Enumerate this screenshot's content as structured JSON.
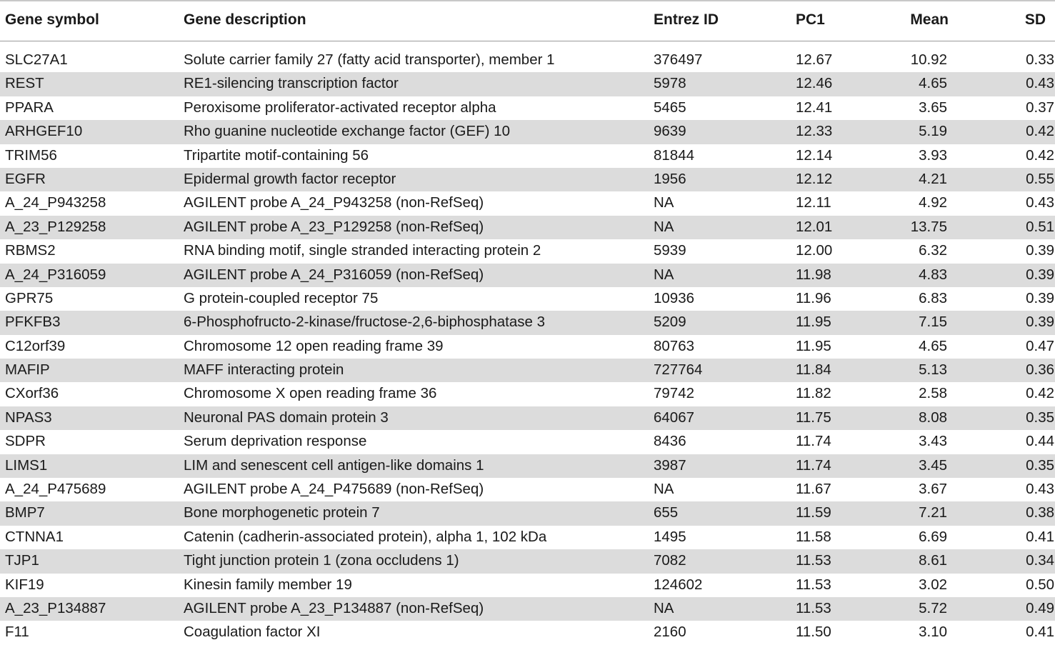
{
  "table": {
    "headers": {
      "gene_symbol": "Gene symbol",
      "gene_description": "Gene description",
      "entrez_id": "Entrez ID",
      "pc1": "PC1",
      "mean": "Mean",
      "sd": "SD"
    },
    "rows": [
      {
        "symbol": "SLC27A1",
        "description": "Solute carrier family 27 (fatty acid transporter), member 1",
        "entrez": "376497",
        "pc1": "12.67",
        "mean": "10.92",
        "sd": "0.33"
      },
      {
        "symbol": "REST",
        "description": "RE1-silencing transcription factor",
        "entrez": "5978",
        "pc1": "12.46",
        "mean": "4.65",
        "sd": "0.43"
      },
      {
        "symbol": "PPARA",
        "description": "Peroxisome proliferator-activated receptor alpha",
        "entrez": "5465",
        "pc1": "12.41",
        "mean": "3.65",
        "sd": "0.37"
      },
      {
        "symbol": "ARHGEF10",
        "description": "Rho guanine nucleotide exchange factor (GEF) 10",
        "entrez": "9639",
        "pc1": "12.33",
        "mean": "5.19",
        "sd": "0.42"
      },
      {
        "symbol": "TRIM56",
        "description": "Tripartite motif-containing 56",
        "entrez": "81844",
        "pc1": "12.14",
        "mean": "3.93",
        "sd": "0.42"
      },
      {
        "symbol": "EGFR",
        "description": "Epidermal growth factor receptor",
        "entrez": "1956",
        "pc1": "12.12",
        "mean": "4.21",
        "sd": "0.55"
      },
      {
        "symbol": "A_24_P943258",
        "description": "AGILENT probe A_24_P943258 (non-RefSeq)",
        "entrez": "NA",
        "pc1": "12.11",
        "mean": "4.92",
        "sd": "0.43"
      },
      {
        "symbol": "A_23_P129258",
        "description": "AGILENT probe A_23_P129258 (non-RefSeq)",
        "entrez": "NA",
        "pc1": "12.01",
        "mean": "13.75",
        "sd": "0.51"
      },
      {
        "symbol": "RBMS2",
        "description": "RNA binding motif, single stranded interacting protein 2",
        "entrez": "5939",
        "pc1": "12.00",
        "mean": "6.32",
        "sd": "0.39"
      },
      {
        "symbol": "A_24_P316059",
        "description": "AGILENT probe A_24_P316059 (non-RefSeq)",
        "entrez": "NA",
        "pc1": "11.98",
        "mean": "4.83",
        "sd": "0.39"
      },
      {
        "symbol": "GPR75",
        "description": "G protein-coupled receptor 75",
        "entrez": "10936",
        "pc1": "11.96",
        "mean": "6.83",
        "sd": "0.39"
      },
      {
        "symbol": "PFKFB3",
        "description": "6-Phosphofructo-2-kinase/fructose-2,6-biphosphatase 3",
        "entrez": "5209",
        "pc1": "11.95",
        "mean": "7.15",
        "sd": "0.39"
      },
      {
        "symbol": "C12orf39",
        "description": "Chromosome 12 open reading frame 39",
        "entrez": "80763",
        "pc1": "11.95",
        "mean": "4.65",
        "sd": "0.47"
      },
      {
        "symbol": "MAFIP",
        "description": "MAFF interacting protein",
        "entrez": "727764",
        "pc1": "11.84",
        "mean": "5.13",
        "sd": "0.36"
      },
      {
        "symbol": "CXorf36",
        "description": "Chromosome X open reading frame 36",
        "entrez": "79742",
        "pc1": "11.82",
        "mean": "2.58",
        "sd": "0.42"
      },
      {
        "symbol": "NPAS3",
        "description": "Neuronal PAS domain protein 3",
        "entrez": "64067",
        "pc1": "11.75",
        "mean": "8.08",
        "sd": "0.35"
      },
      {
        "symbol": "SDPR",
        "description": "Serum deprivation response",
        "entrez": "8436",
        "pc1": "11.74",
        "mean": "3.43",
        "sd": "0.44"
      },
      {
        "symbol": "LIMS1",
        "description": "LIM and senescent cell antigen-like domains 1",
        "entrez": "3987",
        "pc1": "11.74",
        "mean": "3.45",
        "sd": "0.35"
      },
      {
        "symbol": "A_24_P475689",
        "description": "AGILENT probe A_24_P475689 (non-RefSeq)",
        "entrez": "NA",
        "pc1": "11.67",
        "mean": "3.67",
        "sd": "0.43"
      },
      {
        "symbol": "BMP7",
        "description": "Bone morphogenetic protein 7",
        "entrez": "655",
        "pc1": "11.59",
        "mean": "7.21",
        "sd": "0.38"
      },
      {
        "symbol": "CTNNA1",
        "description": "Catenin (cadherin-associated protein), alpha 1, 102 kDa",
        "entrez": "1495",
        "pc1": "11.58",
        "mean": "6.69",
        "sd": "0.41"
      },
      {
        "symbol": "TJP1",
        "description": "Tight junction protein 1 (zona occludens 1)",
        "entrez": "7082",
        "pc1": "11.53",
        "mean": "8.61",
        "sd": "0.34"
      },
      {
        "symbol": "KIF19",
        "description": "Kinesin family member 19",
        "entrez": "124602",
        "pc1": "11.53",
        "mean": "3.02",
        "sd": "0.50"
      },
      {
        "symbol": "A_23_P134887",
        "description": "AGILENT probe A_23_P134887 (non-RefSeq)",
        "entrez": "NA",
        "pc1": "11.53",
        "mean": "5.72",
        "sd": "0.49"
      },
      {
        "symbol": "F11",
        "description": "Coagulation factor XI",
        "entrez": "2160",
        "pc1": "11.50",
        "mean": "3.10",
        "sd": "0.41"
      }
    ]
  },
  "colors": {
    "shaded_row": "#dcdcdc",
    "text": "#1a1a1a"
  }
}
